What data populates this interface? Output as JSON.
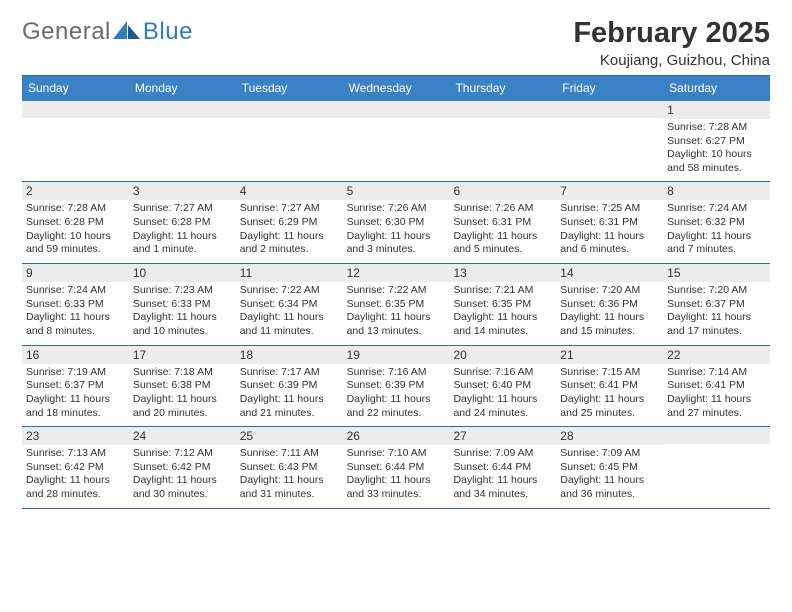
{
  "logo": {
    "word1": "General",
    "word2": "Blue"
  },
  "title": "February 2025",
  "location": "Koujiang, Guizhou, China",
  "colors": {
    "header_bg": "#3b82c4",
    "header_border": "#2c6ea8",
    "daynum_bg": "#ececec",
    "text": "#333333",
    "logo_gray": "#6b6b6b",
    "logo_blue": "#2f7dc3",
    "background": "#ffffff"
  },
  "daysOfWeek": [
    "Sunday",
    "Monday",
    "Tuesday",
    "Wednesday",
    "Thursday",
    "Friday",
    "Saturday"
  ],
  "weeks": [
    [
      {
        "num": "",
        "sunrise": "",
        "sunset": "",
        "daylight": ""
      },
      {
        "num": "",
        "sunrise": "",
        "sunset": "",
        "daylight": ""
      },
      {
        "num": "",
        "sunrise": "",
        "sunset": "",
        "daylight": ""
      },
      {
        "num": "",
        "sunrise": "",
        "sunset": "",
        "daylight": ""
      },
      {
        "num": "",
        "sunrise": "",
        "sunset": "",
        "daylight": ""
      },
      {
        "num": "",
        "sunrise": "",
        "sunset": "",
        "daylight": ""
      },
      {
        "num": "1",
        "sunrise": "Sunrise: 7:28 AM",
        "sunset": "Sunset: 6:27 PM",
        "daylight": "Daylight: 10 hours and 58 minutes."
      }
    ],
    [
      {
        "num": "2",
        "sunrise": "Sunrise: 7:28 AM",
        "sunset": "Sunset: 6:28 PM",
        "daylight": "Daylight: 10 hours and 59 minutes."
      },
      {
        "num": "3",
        "sunrise": "Sunrise: 7:27 AM",
        "sunset": "Sunset: 6:28 PM",
        "daylight": "Daylight: 11 hours and 1 minute."
      },
      {
        "num": "4",
        "sunrise": "Sunrise: 7:27 AM",
        "sunset": "Sunset: 6:29 PM",
        "daylight": "Daylight: 11 hours and 2 minutes."
      },
      {
        "num": "5",
        "sunrise": "Sunrise: 7:26 AM",
        "sunset": "Sunset: 6:30 PM",
        "daylight": "Daylight: 11 hours and 3 minutes."
      },
      {
        "num": "6",
        "sunrise": "Sunrise: 7:26 AM",
        "sunset": "Sunset: 6:31 PM",
        "daylight": "Daylight: 11 hours and 5 minutes."
      },
      {
        "num": "7",
        "sunrise": "Sunrise: 7:25 AM",
        "sunset": "Sunset: 6:31 PM",
        "daylight": "Daylight: 11 hours and 6 minutes."
      },
      {
        "num": "8",
        "sunrise": "Sunrise: 7:24 AM",
        "sunset": "Sunset: 6:32 PM",
        "daylight": "Daylight: 11 hours and 7 minutes."
      }
    ],
    [
      {
        "num": "9",
        "sunrise": "Sunrise: 7:24 AM",
        "sunset": "Sunset: 6:33 PM",
        "daylight": "Daylight: 11 hours and 8 minutes."
      },
      {
        "num": "10",
        "sunrise": "Sunrise: 7:23 AM",
        "sunset": "Sunset: 6:33 PM",
        "daylight": "Daylight: 11 hours and 10 minutes."
      },
      {
        "num": "11",
        "sunrise": "Sunrise: 7:22 AM",
        "sunset": "Sunset: 6:34 PM",
        "daylight": "Daylight: 11 hours and 11 minutes."
      },
      {
        "num": "12",
        "sunrise": "Sunrise: 7:22 AM",
        "sunset": "Sunset: 6:35 PM",
        "daylight": "Daylight: 11 hours and 13 minutes."
      },
      {
        "num": "13",
        "sunrise": "Sunrise: 7:21 AM",
        "sunset": "Sunset: 6:35 PM",
        "daylight": "Daylight: 11 hours and 14 minutes."
      },
      {
        "num": "14",
        "sunrise": "Sunrise: 7:20 AM",
        "sunset": "Sunset: 6:36 PM",
        "daylight": "Daylight: 11 hours and 15 minutes."
      },
      {
        "num": "15",
        "sunrise": "Sunrise: 7:20 AM",
        "sunset": "Sunset: 6:37 PM",
        "daylight": "Daylight: 11 hours and 17 minutes."
      }
    ],
    [
      {
        "num": "16",
        "sunrise": "Sunrise: 7:19 AM",
        "sunset": "Sunset: 6:37 PM",
        "daylight": "Daylight: 11 hours and 18 minutes."
      },
      {
        "num": "17",
        "sunrise": "Sunrise: 7:18 AM",
        "sunset": "Sunset: 6:38 PM",
        "daylight": "Daylight: 11 hours and 20 minutes."
      },
      {
        "num": "18",
        "sunrise": "Sunrise: 7:17 AM",
        "sunset": "Sunset: 6:39 PM",
        "daylight": "Daylight: 11 hours and 21 minutes."
      },
      {
        "num": "19",
        "sunrise": "Sunrise: 7:16 AM",
        "sunset": "Sunset: 6:39 PM",
        "daylight": "Daylight: 11 hours and 22 minutes."
      },
      {
        "num": "20",
        "sunrise": "Sunrise: 7:16 AM",
        "sunset": "Sunset: 6:40 PM",
        "daylight": "Daylight: 11 hours and 24 minutes."
      },
      {
        "num": "21",
        "sunrise": "Sunrise: 7:15 AM",
        "sunset": "Sunset: 6:41 PM",
        "daylight": "Daylight: 11 hours and 25 minutes."
      },
      {
        "num": "22",
        "sunrise": "Sunrise: 7:14 AM",
        "sunset": "Sunset: 6:41 PM",
        "daylight": "Daylight: 11 hours and 27 minutes."
      }
    ],
    [
      {
        "num": "23",
        "sunrise": "Sunrise: 7:13 AM",
        "sunset": "Sunset: 6:42 PM",
        "daylight": "Daylight: 11 hours and 28 minutes."
      },
      {
        "num": "24",
        "sunrise": "Sunrise: 7:12 AM",
        "sunset": "Sunset: 6:42 PM",
        "daylight": "Daylight: 11 hours and 30 minutes."
      },
      {
        "num": "25",
        "sunrise": "Sunrise: 7:11 AM",
        "sunset": "Sunset: 6:43 PM",
        "daylight": "Daylight: 11 hours and 31 minutes."
      },
      {
        "num": "26",
        "sunrise": "Sunrise: 7:10 AM",
        "sunset": "Sunset: 6:44 PM",
        "daylight": "Daylight: 11 hours and 33 minutes."
      },
      {
        "num": "27",
        "sunrise": "Sunrise: 7:09 AM",
        "sunset": "Sunset: 6:44 PM",
        "daylight": "Daylight: 11 hours and 34 minutes."
      },
      {
        "num": "28",
        "sunrise": "Sunrise: 7:09 AM",
        "sunset": "Sunset: 6:45 PM",
        "daylight": "Daylight: 11 hours and 36 minutes."
      },
      {
        "num": "",
        "sunrise": "",
        "sunset": "",
        "daylight": ""
      }
    ]
  ]
}
